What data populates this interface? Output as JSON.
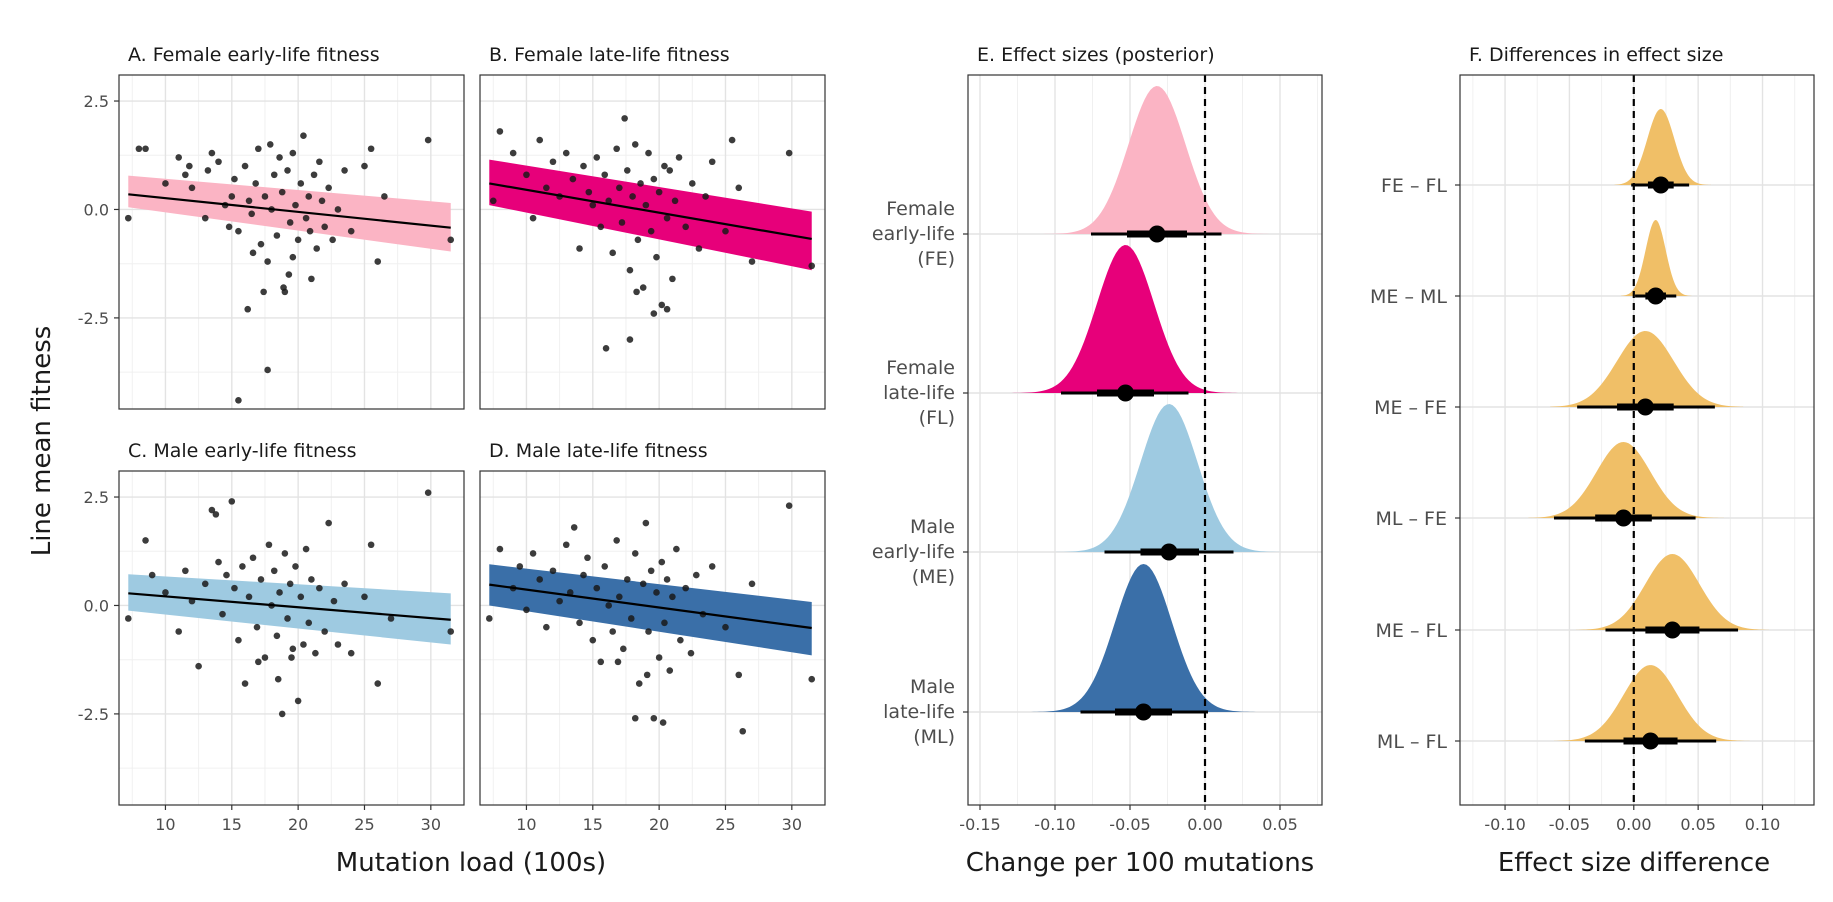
{
  "figure": {
    "ylabel_left": "Line mean fitness",
    "xlabel_left": "Mutation load (100s)",
    "xlabel_E": "Change per 100 mutations",
    "xlabel_F": "Effect size difference"
  },
  "chart_data": [
    {
      "type": "scatter",
      "title": "A. Female early-life fitness",
      "xlim": [
        6.5,
        32.5
      ],
      "ylim": [
        -4.6,
        3.1
      ],
      "xticks": [
        10,
        15,
        20,
        25,
        30
      ],
      "yticks": [
        2.5,
        0.0,
        -2.5
      ],
      "ytick_labels": [
        "2.5",
        "0.0",
        "-2.5"
      ],
      "band_color": "#FBB4C4",
      "line_color": "#000000",
      "fit": {
        "x": [
          7.2,
          31.5
        ],
        "y": [
          0.35,
          -0.42
        ],
        "lower": [
          0.05,
          -0.97
        ],
        "upper": [
          0.78,
          0.15
        ]
      },
      "points": [
        [
          8,
          1.4
        ],
        [
          8.5,
          1.4
        ],
        [
          7.2,
          -0.2
        ],
        [
          10,
          0.6
        ],
        [
          11,
          1.2
        ],
        [
          11.5,
          0.8
        ],
        [
          11.8,
          1.0
        ],
        [
          12,
          0.5
        ],
        [
          13,
          -0.2
        ],
        [
          13.2,
          0.9
        ],
        [
          13.5,
          1.3
        ],
        [
          14,
          1.1
        ],
        [
          14.5,
          0.1
        ],
        [
          14.8,
          -0.4
        ],
        [
          15,
          0.3
        ],
        [
          15.2,
          0.7
        ],
        [
          15.5,
          -0.5
        ],
        [
          16,
          1.0
        ],
        [
          16.3,
          0.2
        ],
        [
          16.5,
          -0.1
        ],
        [
          16.8,
          0.6
        ],
        [
          17,
          1.4
        ],
        [
          17.2,
          -0.8
        ],
        [
          17.5,
          0.3
        ],
        [
          17.7,
          -1.2
        ],
        [
          17.9,
          1.5
        ],
        [
          18,
          0.0
        ],
        [
          18.2,
          0.8
        ],
        [
          18.4,
          -0.6
        ],
        [
          18.6,
          1.2
        ],
        [
          18.8,
          0.4
        ],
        [
          19,
          -1.9
        ],
        [
          19.2,
          0.9
        ],
        [
          19.4,
          -0.3
        ],
        [
          19.6,
          1.3
        ],
        [
          19.8,
          0.1
        ],
        [
          20,
          -0.7
        ],
        [
          20.2,
          0.6
        ],
        [
          20.4,
          1.7
        ],
        [
          20.6,
          -0.2
        ],
        [
          20.8,
          0.3
        ],
        [
          21,
          -1.6
        ],
        [
          21.2,
          0.8
        ],
        [
          21.4,
          -0.9
        ],
        [
          21.6,
          1.1
        ],
        [
          21.8,
          0.2
        ],
        [
          22,
          -0.4
        ],
        [
          22.3,
          0.5
        ],
        [
          22.6,
          -0.7
        ],
        [
          23,
          0.0
        ],
        [
          23.5,
          0.9
        ],
        [
          24,
          -0.5
        ],
        [
          25,
          1.0
        ],
        [
          25.5,
          1.4
        ],
        [
          26,
          -1.2
        ],
        [
          26.5,
          0.3
        ],
        [
          29.8,
          1.6
        ],
        [
          31.5,
          -0.7
        ],
        [
          16.2,
          -2.3
        ],
        [
          17.7,
          -3.7
        ],
        [
          15.5,
          -4.4
        ],
        [
          18.9,
          -1.8
        ],
        [
          19.3,
          -1.5
        ],
        [
          17.4,
          -1.9
        ],
        [
          16.6,
          -1.0
        ],
        [
          20.9,
          -0.5
        ],
        [
          19.6,
          -1.1
        ]
      ]
    },
    {
      "type": "scatter",
      "title": "B. Female late-life fitness",
      "xlim": [
        6.5,
        32.5
      ],
      "ylim": [
        -4.6,
        3.1
      ],
      "xticks": [
        10,
        15,
        20,
        25,
        30
      ],
      "yticks": [
        2.5,
        0.0,
        -2.5
      ],
      "band_color": "#E7007A",
      "line_color": "#000000",
      "fit": {
        "x": [
          7.2,
          31.5
        ],
        "y": [
          0.6,
          -0.68
        ],
        "lower": [
          0.1,
          -1.4
        ],
        "upper": [
          1.15,
          -0.05
        ]
      },
      "points": [
        [
          7.5,
          0.2
        ],
        [
          8,
          1.8
        ],
        [
          9,
          1.3
        ],
        [
          10,
          0.8
        ],
        [
          10.5,
          -0.2
        ],
        [
          11,
          1.6
        ],
        [
          11.5,
          0.5
        ],
        [
          12,
          1.1
        ],
        [
          12.5,
          0.3
        ],
        [
          13,
          1.3
        ],
        [
          13.5,
          0.7
        ],
        [
          14,
          -0.9
        ],
        [
          14.3,
          1.0
        ],
        [
          14.7,
          0.4
        ],
        [
          15,
          0.1
        ],
        [
          15.3,
          1.2
        ],
        [
          15.6,
          -0.4
        ],
        [
          15.9,
          0.8
        ],
        [
          16.2,
          0.2
        ],
        [
          16.5,
          -1.0
        ],
        [
          16.8,
          1.4
        ],
        [
          17,
          0.5
        ],
        [
          17.2,
          -0.3
        ],
        [
          17.4,
          2.1
        ],
        [
          17.6,
          0.9
        ],
        [
          17.8,
          -1.4
        ],
        [
          18,
          0.3
        ],
        [
          18.2,
          1.5
        ],
        [
          18.4,
          -0.7
        ],
        [
          18.6,
          0.6
        ],
        [
          18.8,
          -1.8
        ],
        [
          19,
          0.1
        ],
        [
          19.2,
          1.3
        ],
        [
          19.4,
          -0.5
        ],
        [
          19.6,
          0.7
        ],
        [
          19.8,
          -1.1
        ],
        [
          20,
          0.4
        ],
        [
          20.2,
          -2.2
        ],
        [
          20.4,
          1.0
        ],
        [
          20.6,
          -0.2
        ],
        [
          20.8,
          0.9
        ],
        [
          21,
          -1.6
        ],
        [
          21.2,
          0.2
        ],
        [
          21.5,
          1.2
        ],
        [
          22,
          -0.4
        ],
        [
          22.5,
          0.6
        ],
        [
          23,
          -0.9
        ],
        [
          23.5,
          0.3
        ],
        [
          24,
          1.1
        ],
        [
          25,
          -0.5
        ],
        [
          25.5,
          1.6
        ],
        [
          26,
          0.5
        ],
        [
          27,
          -1.2
        ],
        [
          29.8,
          1.3
        ],
        [
          31.5,
          -1.3
        ],
        [
          16,
          -3.2
        ],
        [
          17.8,
          -3.0
        ],
        [
          19.6,
          -2.4
        ],
        [
          20.6,
          -2.3
        ],
        [
          18.3,
          -1.9
        ]
      ]
    },
    {
      "type": "scatter",
      "title": "C. Male early-life fitness",
      "xlim": [
        6.5,
        32.5
      ],
      "ylim": [
        -4.6,
        3.1
      ],
      "xticks": [
        10,
        15,
        20,
        25,
        30
      ],
      "yticks": [
        2.5,
        0.0,
        -2.5
      ],
      "band_color": "#9ECAE1",
      "line_color": "#000000",
      "fit": {
        "x": [
          7.2,
          31.5
        ],
        "y": [
          0.28,
          -0.33
        ],
        "lower": [
          -0.12,
          -0.9
        ],
        "upper": [
          0.72,
          0.28
        ]
      },
      "points": [
        [
          7.2,
          -0.3
        ],
        [
          8.5,
          1.5
        ],
        [
          9,
          0.7
        ],
        [
          10,
          0.3
        ],
        [
          11,
          -0.6
        ],
        [
          11.5,
          0.8
        ],
        [
          12,
          0.1
        ],
        [
          12.5,
          -1.4
        ],
        [
          13,
          0.5
        ],
        [
          13.5,
          2.2
        ],
        [
          13.8,
          2.1
        ],
        [
          14,
          1.0
        ],
        [
          14.3,
          -0.2
        ],
        [
          14.6,
          0.7
        ],
        [
          15,
          2.4
        ],
        [
          15.2,
          0.4
        ],
        [
          15.5,
          -0.8
        ],
        [
          15.8,
          0.9
        ],
        [
          16,
          -1.8
        ],
        [
          16.3,
          0.2
        ],
        [
          16.6,
          1.1
        ],
        [
          16.9,
          -0.5
        ],
        [
          17.2,
          0.6
        ],
        [
          17.5,
          -1.2
        ],
        [
          17.8,
          1.4
        ],
        [
          18,
          0.0
        ],
        [
          18.2,
          0.8
        ],
        [
          18.4,
          -0.7
        ],
        [
          18.6,
          0.3
        ],
        [
          18.8,
          -2.5
        ],
        [
          19,
          1.2
        ],
        [
          19.2,
          -0.3
        ],
        [
          19.4,
          0.5
        ],
        [
          19.6,
          -1.0
        ],
        [
          19.8,
          0.9
        ],
        [
          20,
          -2.2
        ],
        [
          20.2,
          0.2
        ],
        [
          20.4,
          -0.9
        ],
        [
          20.6,
          1.3
        ],
        [
          20.8,
          -0.4
        ],
        [
          21,
          0.6
        ],
        [
          21.3,
          -1.1
        ],
        [
          21.6,
          0.4
        ],
        [
          22,
          -0.6
        ],
        [
          22.3,
          1.9
        ],
        [
          22.7,
          0.1
        ],
        [
          23,
          -0.9
        ],
        [
          23.5,
          0.5
        ],
        [
          24,
          -1.1
        ],
        [
          25,
          0.2
        ],
        [
          25.5,
          1.4
        ],
        [
          26,
          -1.8
        ],
        [
          27,
          -0.3
        ],
        [
          29.8,
          2.6
        ],
        [
          31.5,
          -0.6
        ],
        [
          18.5,
          -1.7
        ],
        [
          17,
          -1.3
        ],
        [
          19.5,
          -1.2
        ]
      ]
    },
    {
      "type": "scatter",
      "title": "D. Male late-life fitness",
      "xlim": [
        6.5,
        32.5
      ],
      "ylim": [
        -4.6,
        3.1
      ],
      "xticks": [
        10,
        15,
        20,
        25,
        30
      ],
      "yticks": [
        2.5,
        0.0,
        -2.5
      ],
      "band_color": "#3A6FA8",
      "line_color": "#000000",
      "fit": {
        "x": [
          7.2,
          31.5
        ],
        "y": [
          0.48,
          -0.52
        ],
        "lower": [
          0.0,
          -1.15
        ],
        "upper": [
          0.95,
          0.08
        ]
      },
      "points": [
        [
          7.2,
          -0.3
        ],
        [
          8,
          1.3
        ],
        [
          9,
          0.4
        ],
        [
          9.5,
          0.9
        ],
        [
          10,
          -0.1
        ],
        [
          10.5,
          1.2
        ],
        [
          11,
          0.6
        ],
        [
          11.5,
          -0.5
        ],
        [
          12,
          0.8
        ],
        [
          12.5,
          0.1
        ],
        [
          13,
          1.4
        ],
        [
          13.3,
          0.3
        ],
        [
          13.6,
          1.8
        ],
        [
          14,
          -0.4
        ],
        [
          14.3,
          0.7
        ],
        [
          14.6,
          1.1
        ],
        [
          15,
          -0.8
        ],
        [
          15.3,
          0.4
        ],
        [
          15.6,
          -1.3
        ],
        [
          15.9,
          0.9
        ],
        [
          16.2,
          0.0
        ],
        [
          16.5,
          -0.6
        ],
        [
          16.8,
          1.5
        ],
        [
          17,
          0.2
        ],
        [
          17.3,
          -1.0
        ],
        [
          17.6,
          0.6
        ],
        [
          17.9,
          -0.3
        ],
        [
          18.2,
          1.2
        ],
        [
          18.5,
          -1.8
        ],
        [
          18.8,
          0.5
        ],
        [
          19,
          1.9
        ],
        [
          19.2,
          -0.6
        ],
        [
          19.4,
          0.8
        ],
        [
          19.6,
          -2.6
        ],
        [
          19.8,
          0.3
        ],
        [
          20,
          -1.2
        ],
        [
          20.2,
          1.0
        ],
        [
          20.4,
          -0.4
        ],
        [
          20.6,
          0.6
        ],
        [
          20.8,
          -1.5
        ],
        [
          21,
          0.2
        ],
        [
          21.3,
          1.3
        ],
        [
          21.6,
          -0.8
        ],
        [
          22,
          0.4
        ],
        [
          22.4,
          -1.1
        ],
        [
          22.8,
          0.7
        ],
        [
          23.3,
          -0.2
        ],
        [
          24,
          0.9
        ],
        [
          25,
          -0.5
        ],
        [
          26,
          -1.6
        ],
        [
          26.3,
          -2.9
        ],
        [
          27,
          0.5
        ],
        [
          29.8,
          2.3
        ],
        [
          31.5,
          -1.7
        ],
        [
          20.3,
          -2.7
        ],
        [
          18.2,
          -2.6
        ],
        [
          16.9,
          -1.3
        ],
        [
          19.1,
          -1.6
        ]
      ]
    },
    {
      "type": "density",
      "title": "E. Effect sizes (posterior)",
      "xlim": [
        -0.158,
        0.078
      ],
      "xticks": [
        -0.15,
        -0.1,
        -0.05,
        0.0,
        0.05
      ],
      "xtick_labels": [
        "-0.15",
        "-0.10",
        "-0.05",
        "0.00",
        "0.05"
      ],
      "reference_line": 0.0,
      "rows": [
        {
          "label_lines": [
            "Female",
            "early-life",
            "(FE)"
          ],
          "color": "#FBB4C4",
          "mean": -0.032,
          "sd": 0.019,
          "lo": -0.11,
          "hi": 0.045,
          "median": -0.032,
          "ci66": [
            -0.052,
            -0.012
          ],
          "ci95": [
            -0.076,
            0.011
          ]
        },
        {
          "label_lines": [
            "Female",
            "late-life",
            "(FL)"
          ],
          "color": "#E7007A",
          "mean": -0.053,
          "sd": 0.019,
          "lo": -0.131,
          "hi": 0.024,
          "median": -0.053,
          "ci66": [
            -0.072,
            -0.034
          ],
          "ci95": [
            -0.096,
            -0.011
          ]
        },
        {
          "label_lines": [
            "Male",
            "early-life",
            "(ME)"
          ],
          "color": "#9ECAE1",
          "mean": -0.024,
          "sd": 0.019,
          "lo": -0.102,
          "hi": 0.055,
          "median": -0.024,
          "ci66": [
            -0.043,
            -0.004
          ],
          "ci95": [
            -0.067,
            0.019
          ]
        },
        {
          "label_lines": [
            "Male",
            "late-life",
            "(ML)"
          ],
          "color": "#3A6FA8",
          "mean": -0.041,
          "sd": 0.019,
          "lo": -0.12,
          "hi": 0.038,
          "median": -0.041,
          "ci66": [
            -0.06,
            -0.022
          ],
          "ci95": [
            -0.083,
            0.002
          ]
        }
      ]
    },
    {
      "type": "density",
      "title": "F. Differences in effect size",
      "xlim": [
        -0.135,
        0.14
      ],
      "xticks": [
        -0.1,
        -0.05,
        0.0,
        0.05,
        0.1
      ],
      "xtick_labels": [
        "-0.10",
        "-0.05",
        "0.00",
        "0.05",
        "0.10"
      ],
      "reference_line": 0.0,
      "color": "#F0BF67",
      "rows": [
        {
          "label": "FE – FL",
          "mean": 0.021,
          "sd": 0.0105,
          "lo": -0.015,
          "hi": 0.06,
          "median": 0.021,
          "ci66": [
            0.011,
            0.031
          ],
          "ci95": [
            -0.002,
            0.043
          ]
        },
        {
          "label": "ME – ML",
          "mean": 0.017,
          "sd": 0.0078,
          "lo": -0.01,
          "hi": 0.045,
          "median": 0.017,
          "ci66": [
            0.009,
            0.025
          ],
          "ci95": [
            0.001,
            0.033
          ]
        },
        {
          "label": "ME – FE",
          "mean": 0.009,
          "sd": 0.022,
          "lo": -0.065,
          "hi": 0.085,
          "median": 0.009,
          "ci66": [
            -0.013,
            0.031
          ],
          "ci95": [
            -0.044,
            0.063
          ]
        },
        {
          "label": "ML – FE",
          "mean": -0.008,
          "sd": 0.021,
          "lo": -0.082,
          "hi": 0.07,
          "median": -0.008,
          "ci66": [
            -0.03,
            0.014
          ],
          "ci95": [
            -0.062,
            0.048
          ]
        },
        {
          "label": "ME – FL",
          "mean": 0.03,
          "sd": 0.021,
          "lo": -0.045,
          "hi": 0.105,
          "median": 0.03,
          "ci66": [
            0.009,
            0.051
          ],
          "ci95": [
            -0.022,
            0.081
          ]
        },
        {
          "label": "ML – FL",
          "mean": 0.013,
          "sd": 0.021,
          "lo": -0.062,
          "hi": 0.09,
          "median": 0.013,
          "ci66": [
            -0.008,
            0.034
          ],
          "ci95": [
            -0.038,
            0.064
          ]
        }
      ]
    }
  ]
}
